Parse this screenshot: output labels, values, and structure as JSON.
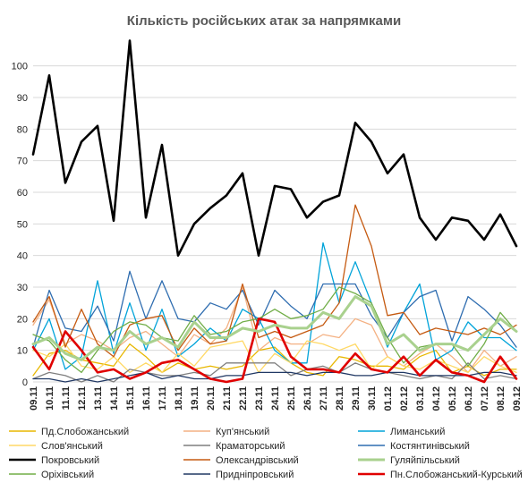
{
  "chart_data": {
    "type": "line",
    "title": "Кількість російських атак за напрямками",
    "xlabel": "",
    "ylabel": "",
    "ylim": [
      0,
      105
    ],
    "yticks": [
      0,
      10,
      20,
      30,
      40,
      50,
      60,
      70,
      80,
      90,
      100
    ],
    "grid": true,
    "legend_position": "bottom",
    "x": [
      "09.11",
      "10.11",
      "11.11",
      "12.11",
      "13.11",
      "14.11",
      "15.11",
      "16.11",
      "17.11",
      "18.11",
      "19.11",
      "20.11",
      "21.11",
      "22.11",
      "23.11",
      "24.11",
      "25.11",
      "26.11",
      "27.11",
      "28.11",
      "29.11",
      "30.11",
      "01.12",
      "02.12",
      "03.12",
      "04.12",
      "05.12",
      "06.12",
      "07.12",
      "08.12",
      "09.12"
    ],
    "x_tick_labels": [
      "09.11",
      "10.11",
      "11.11",
      "12.11",
      "13.11",
      "14.11",
      "15.11",
      "16.11",
      "17.11",
      "18.11",
      "19.11",
      "20.11",
      "21.11",
      "22.11",
      "23.11",
      "24.11",
      "25.11",
      "26.11",
      "27.11",
      "28.11",
      "29.11",
      "30.11",
      "01.12",
      "02.12",
      "03.12",
      "04.12",
      "05.12",
      "06.12",
      "07.12",
      "08.12",
      "09.12"
    ],
    "series": [
      {
        "name": "Пд.Слобожанський",
        "color": "#e8b700",
        "width": 1.3,
        "values": [
          2,
          9,
          10,
          7,
          6,
          5,
          12,
          8,
          3,
          6,
          4,
          5,
          4,
          5,
          10,
          11,
          6,
          3,
          2,
          8,
          7,
          5,
          5,
          4,
          8,
          10,
          3,
          5,
          2,
          4,
          4
        ]
      },
      {
        "name": "Куп'янський",
        "color": "#f4b183",
        "width": 1.3,
        "values": [
          18,
          26,
          12,
          15,
          13,
          10,
          14,
          16,
          12,
          8,
          15,
          12,
          17,
          30,
          10,
          14,
          12,
          12,
          15,
          14,
          20,
          18,
          8,
          5,
          9,
          12,
          8,
          3,
          10,
          5,
          8
        ]
      },
      {
        "name": "Лиманський",
        "color": "#00a3d9",
        "width": 1.3,
        "values": [
          10,
          20,
          4,
          8,
          32,
          9,
          25,
          10,
          23,
          8,
          12,
          17,
          13,
          23,
          20,
          10,
          6,
          6,
          44,
          25,
          38,
          25,
          11,
          22,
          31,
          7,
          10,
          19,
          14,
          14,
          10
        ]
      },
      {
        "name": "Слов'янський",
        "color": "#ffd966",
        "width": 1.3,
        "values": [
          10,
          8,
          12,
          5,
          4,
          8,
          3,
          6,
          3,
          9,
          5,
          11,
          12,
          13,
          3,
          9,
          6,
          13,
          12,
          10,
          12,
          4,
          8,
          5,
          4,
          7,
          5,
          3,
          8,
          5,
          3
        ]
      },
      {
        "name": "Краматорський",
        "color": "#7f7f7f",
        "width": 1.3,
        "values": [
          1,
          3,
          2,
          0,
          2,
          0,
          4,
          3,
          2,
          2,
          3,
          2,
          6,
          6,
          6,
          6,
          2,
          4,
          5,
          3,
          6,
          4,
          3,
          2,
          1,
          2,
          1,
          6,
          1,
          2,
          1
        ]
      },
      {
        "name": "Костянтинівський",
        "color": "#2f6db0",
        "width": 1.3,
        "values": [
          11,
          29,
          17,
          16,
          24,
          13,
          35,
          20,
          32,
          20,
          19,
          25,
          23,
          29,
          18,
          29,
          24,
          20,
          31,
          31,
          31,
          21,
          14,
          22,
          27,
          29,
          13,
          27,
          23,
          18,
          11
        ]
      },
      {
        "name": "Покровський",
        "color": "#000000",
        "width": 2.6,
        "values": [
          72,
          97,
          63,
          76,
          81,
          51,
          108,
          52,
          75,
          40,
          50,
          55,
          59,
          66,
          40,
          62,
          61,
          52,
          57,
          59,
          82,
          76,
          66,
          72,
          52,
          45,
          52,
          51,
          45,
          53,
          43
        ]
      },
      {
        "name": "Олександрівський",
        "color": "#c55a11",
        "width": 1.3,
        "values": [
          19,
          27,
          11,
          23,
          12,
          8,
          18,
          20,
          21,
          10,
          17,
          12,
          13,
          31,
          14,
          16,
          14,
          16,
          18,
          25,
          56,
          43,
          21,
          22,
          15,
          17,
          16,
          15,
          17,
          15,
          18
        ]
      },
      {
        "name": "Гуляйпільський",
        "color": "#a9d18e",
        "width": 3.0,
        "values": [
          12,
          14,
          9,
          7,
          11,
          10,
          16,
          12,
          14,
          11,
          19,
          14,
          14,
          17,
          16,
          18,
          17,
          17,
          22,
          20,
          27,
          24,
          12,
          15,
          10,
          12,
          12,
          10,
          15,
          20,
          16
        ]
      },
      {
        "name": "Оріхівський",
        "color": "#70ad47",
        "width": 1.3,
        "values": [
          15,
          13,
          7,
          3,
          10,
          16,
          19,
          18,
          14,
          13,
          21,
          15,
          16,
          19,
          20,
          23,
          20,
          21,
          23,
          30,
          28,
          25,
          14,
          6,
          11,
          12,
          12,
          5,
          12,
          22,
          16
        ]
      },
      {
        "name": "Придніпровський",
        "color": "#203864",
        "width": 1.3,
        "values": [
          1,
          1,
          0,
          1,
          0,
          1,
          2,
          3,
          1,
          2,
          1,
          1,
          2,
          2,
          3,
          3,
          3,
          2,
          3,
          3,
          2,
          2,
          3,
          3,
          2,
          2,
          2,
          2,
          3,
          3,
          2
        ]
      },
      {
        "name": "Пн.Слобожанський-Курський",
        "color": "#e00000",
        "width": 2.6,
        "values": [
          11,
          4,
          16,
          10,
          3,
          4,
          1,
          3,
          6,
          7,
          4,
          1,
          0,
          1,
          20,
          19,
          8,
          4,
          4,
          3,
          9,
          4,
          3,
          8,
          2,
          7,
          3,
          2,
          0,
          8,
          1
        ]
      }
    ]
  }
}
